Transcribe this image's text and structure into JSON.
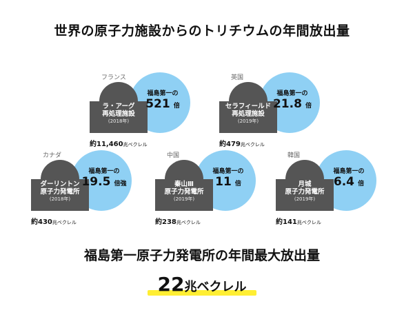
{
  "title": "世界の原子力施設からのトリチウムの年間放出量",
  "ratio_label": "福島第一の",
  "amount_unit": "兆ベクレル",
  "plants": [
    {
      "country": "フランス",
      "name_lines": [
        "ラ・アーグ",
        "再処理施設"
      ],
      "year": "(2018年)",
      "ratio": "521",
      "ratio_suffix": "倍",
      "amount_prefix": "約",
      "amount": "11,460"
    },
    {
      "country": "英国",
      "name_lines": [
        "セラフィールド",
        "再処理施設"
      ],
      "year": "(2019年)",
      "ratio": "21.8",
      "ratio_suffix": "倍",
      "amount_prefix": "約",
      "amount": "479"
    },
    {
      "country": "カナダ",
      "name_lines": [
        "ダーリントン",
        "原子力発電所"
      ],
      "year": "(2018年)",
      "ratio": "19.5",
      "ratio_suffix": "倍強",
      "amount_prefix": "約",
      "amount": "430"
    },
    {
      "country": "中国",
      "name_lines": [
        "秦山Ⅲ",
        "原子力発電所"
      ],
      "year": "(2019年)",
      "ratio": "11",
      "ratio_suffix": "倍",
      "amount_prefix": "約",
      "amount": "238"
    },
    {
      "country": "韓国",
      "name_lines": [
        "月城",
        "原子力発電所"
      ],
      "year": "(2019年)",
      "ratio": "6.4",
      "ratio_suffix": "倍",
      "amount_prefix": "約",
      "amount": "141"
    }
  ],
  "bottom": {
    "title": "福島第一原子力発電所の年間最大放出量",
    "value": "22",
    "unit": "兆ベクレル"
  }
}
